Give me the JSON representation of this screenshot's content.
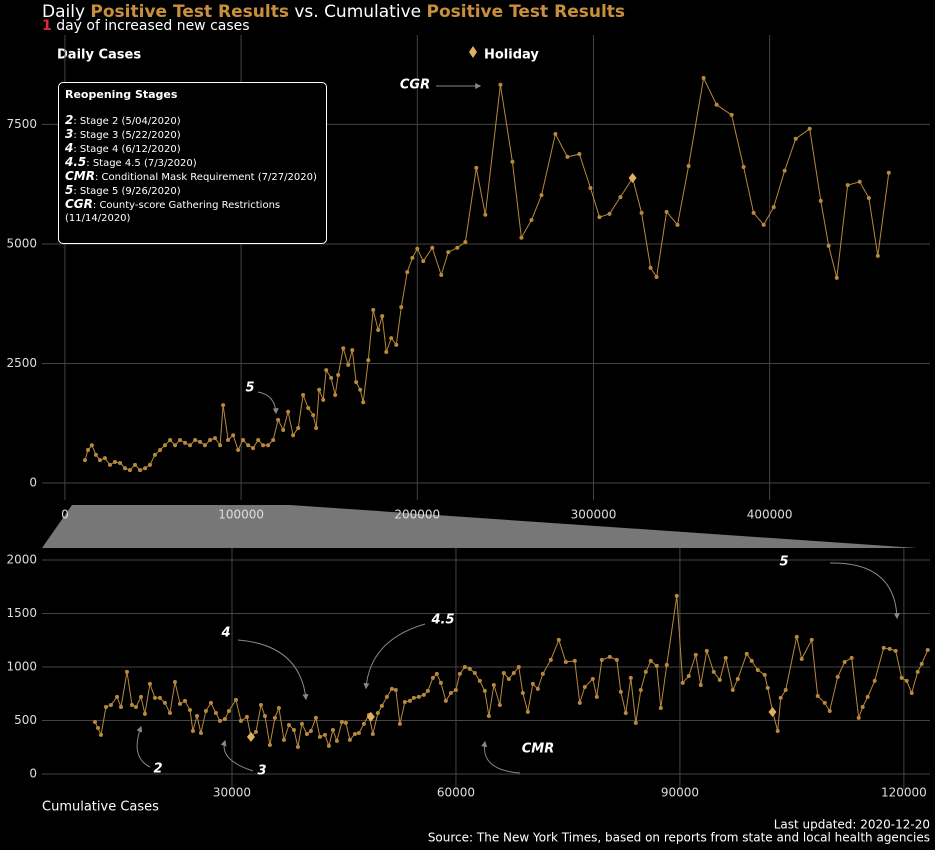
{
  "chart_data": [
    {
      "type": "line",
      "title_parts": [
        "Daily ",
        "Positive Test Results",
        " vs. Cumulative ",
        "Positive Test Results"
      ],
      "subtitle_parts": [
        "1",
        "day of increased new cases"
      ],
      "y_label": "Daily Cases",
      "color": "#b8883c",
      "xlim": [
        -13000,
        491000
      ],
      "ylim": [
        -355,
        9370
      ],
      "xticks": [
        0,
        100000,
        200000,
        300000,
        400000
      ],
      "yticks": [
        0,
        2500,
        5000,
        7500
      ],
      "grid": true,
      "x": [
        11400,
        13100,
        15300,
        17600,
        19900,
        22700,
        25600,
        28400,
        31300,
        34100,
        36900,
        39800,
        42600,
        45500,
        48300,
        51100,
        54000,
        56800,
        59700,
        62500,
        65300,
        68200,
        71000,
        73900,
        76700,
        79500,
        82400,
        85200,
        88100,
        89800,
        92600,
        95500,
        98300,
        101100,
        104000,
        106800,
        109700,
        112500,
        115300,
        118200,
        121000,
        123900,
        126700,
        129500,
        132400,
        135200,
        138100,
        140900,
        142600,
        144300,
        146600,
        148300,
        151100,
        153400,
        155100,
        158000,
        160800,
        163100,
        165300,
        167600,
        169300,
        172200,
        175000,
        177800,
        180100,
        182400,
        185200,
        188100,
        190900,
        194300,
        197200,
        200000,
        203400,
        208500,
        213600,
        217600,
        222700,
        227300,
        233500,
        238600,
        247200,
        254000,
        259100,
        264800,
        270500,
        278400,
        285200,
        292000,
        298300,
        303400,
        309100,
        315300,
        322200,
        327300,
        332400,
        335800,
        341500,
        347700,
        354000,
        362500,
        369900,
        378400,
        385200,
        390900,
        396600,
        402300,
        408500,
        414800,
        422700,
        429000,
        433500,
        438100,
        444300,
        451100,
        456300,
        461400,
        467600
      ],
      "values": [
        480,
        690,
        790,
        590,
        480,
        520,
        380,
        440,
        420,
        310,
        270,
        380,
        270,
        310,
        380,
        590,
        690,
        790,
        900,
        790,
        900,
        840,
        790,
        900,
        860,
        790,
        900,
        940,
        790,
        1630,
        900,
        1000,
        690,
        900,
        790,
        730,
        900,
        790,
        790,
        900,
        1320,
        1110,
        1490,
        1000,
        1150,
        1840,
        1570,
        1420,
        1150,
        1950,
        1740,
        2360,
        2200,
        1840,
        2260,
        2820,
        2470,
        2780,
        2110,
        1950,
        1690,
        2570,
        3620,
        3200,
        3490,
        2740,
        3030,
        2890,
        3680,
        4410,
        4710,
        4900,
        4640,
        4920,
        4350,
        4830,
        4920,
        5040,
        6590,
        5610,
        8330,
        6720,
        5130,
        5500,
        6020,
        7300,
        6820,
        6880,
        6170,
        5560,
        5630,
        5980,
        6380,
        5650,
        4500,
        4310,
        5670,
        5400,
        6630,
        8470,
        7910,
        7700,
        6610,
        5650,
        5400,
        5770,
        6530,
        7200,
        7410,
        5900,
        4960,
        4290,
        6230,
        6300,
        5960,
        4750,
        6490
      ],
      "holiday": {
        "name": "Holiday",
        "color": "#e0b060",
        "x": [
          322200
        ],
        "values": [
          6380
        ]
      },
      "annotations": [
        "5",
        "CGR"
      ],
      "stages": {
        "title": "Reopening Stages",
        "items": [
          {
            "key": "2",
            "text": ": Stage 2 (5/04/2020)"
          },
          {
            "key": "3",
            "text": ": Stage 3 (5/22/2020)"
          },
          {
            "key": "4",
            "text": ": Stage 4 (6/12/2020)"
          },
          {
            "key": "4.5",
            "text": ": Stage 4.5 (7/3/2020)"
          },
          {
            "key": "CMR",
            "text": ": Conditional Mask Requirement (7/27/2020)"
          },
          {
            "key": "5",
            "text": ": Stage 5 (9/26/2020)"
          },
          {
            "key": "CGR",
            "text": ": County-score Gathering Restrictions (11/14/2020)"
          }
        ]
      }
    },
    {
      "type": "line",
      "x_label": "Cumulative Cases",
      "color": "#b8883c",
      "xlim": [
        4550,
        123500
      ],
      "ylim": [
        -150,
        2112
      ],
      "xticks": [
        30000,
        60000,
        90000,
        120000
      ],
      "yticks": [
        0,
        500,
        1000,
        1500,
        2000
      ],
      "grid": true,
      "x": [
        11650,
        12050,
        12450,
        13120,
        13790,
        14600,
        15130,
        15930,
        16600,
        17140,
        17810,
        18340,
        19010,
        19680,
        20350,
        21020,
        21690,
        22360,
        23030,
        23700,
        24370,
        24770,
        25310,
        25840,
        26510,
        27180,
        27850,
        28390,
        29060,
        29590,
        30530,
        31200,
        32000,
        32540,
        33210,
        33880,
        34410,
        35080,
        35750,
        36290,
        36960,
        37630,
        38300,
        38830,
        39370,
        40040,
        40570,
        41240,
        41780,
        42450,
        42980,
        43520,
        44050,
        44720,
        45260,
        45790,
        46460,
        47000,
        47670,
        48340,
        48870,
        49540,
        50080,
        50750,
        51420,
        51950,
        52490,
        53160,
        53830,
        54360,
        55030,
        55700,
        56240,
        56910,
        57440,
        57980,
        58650,
        59320,
        59990,
        60520,
        61190,
        61860,
        62530,
        63200,
        63870,
        64410,
        65080,
        65880,
        66410,
        67080,
        67750,
        68420,
        68960,
        69630,
        70300,
        70970,
        71640,
        72710,
        73780,
        74720,
        75920,
        76590,
        77260,
        78330,
        78870,
        79540,
        80610,
        81550,
        82080,
        82750,
        83420,
        84090,
        84760,
        85430,
        86100,
        86900,
        87440,
        88240,
        89580,
        90380,
        91190,
        92120,
        92790,
        93600,
        94530,
        95340,
        96140,
        97080,
        97750,
        98950,
        99620,
        100430,
        101360,
        101760,
        102430,
        103100,
        103500,
        104170,
        105650,
        106320,
        107660,
        108460,
        109400,
        110070,
        111140,
        112070,
        113010,
        113950,
        114480,
        115150,
        116090,
        117300,
        118100,
        118900,
        119710,
        120380,
        121050,
        121850,
        122390,
        123190
      ],
      "values": [
        486,
        430,
        365,
        626,
        645,
        720,
        626,
        954,
        645,
        626,
        720,
        561,
        842,
        711,
        711,
        664,
        570,
        860,
        655,
        683,
        598,
        402,
        542,
        383,
        589,
        664,
        570,
        496,
        514,
        589,
        692,
        496,
        533,
        346,
        393,
        645,
        542,
        271,
        524,
        617,
        318,
        458,
        411,
        252,
        468,
        374,
        402,
        524,
        346,
        365,
        262,
        411,
        309,
        486,
        477,
        318,
        374,
        383,
        468,
        552,
        374,
        570,
        636,
        720,
        795,
        785,
        468,
        673,
        683,
        711,
        720,
        739,
        776,
        898,
        935,
        851,
        683,
        757,
        785,
        935,
        1000,
        982,
        944,
        870,
        776,
        542,
        832,
        645,
        944,
        888,
        944,
        1000,
        757,
        580,
        842,
        795,
        935,
        1066,
        1253,
        1047,
        1057,
        664,
        813,
        888,
        720,
        1066,
        1094,
        1066,
        767,
        570,
        898,
        477,
        785,
        954,
        1057,
        1010,
        617,
        1019,
        1664,
        851,
        916,
        1113,
        832,
        1150,
        954,
        879,
        1085,
        785,
        888,
        1122,
        1057,
        972,
        926,
        804,
        580,
        402,
        711,
        785,
        1281,
        1075,
        1253,
        729,
        664,
        589,
        907,
        1047,
        1085,
        524,
        626,
        720,
        870,
        1178,
        1169,
        1150,
        898,
        870,
        757,
        954,
        1029,
        1159
      ],
      "holiday": {
        "color": "#e0b060",
        "x": [
          32540,
          48600,
          102400
        ],
        "values": [
          346,
          533,
          579
        ]
      },
      "annotations": [
        "2",
        "3",
        "4",
        "4.5",
        "CMR",
        "5"
      ],
      "footer": [
        "Last updated: 2020-12-20",
        "Source: The New York Times, based on reports from state and local health agencies"
      ]
    }
  ]
}
